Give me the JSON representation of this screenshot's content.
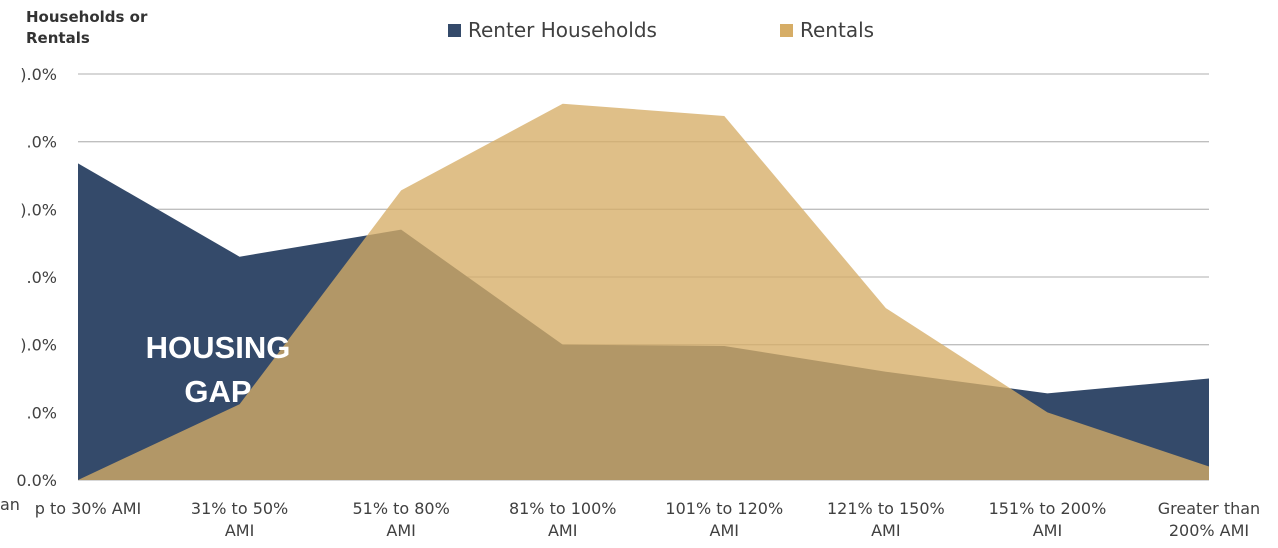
{
  "chart_data": {
    "type": "area",
    "y_axis_title": "Households or\nRentals",
    "annotation": "HOUSING\nGAP",
    "stray_label": "an",
    "categories": [
      "p to 30% AMI",
      "31% to 50%\nAMI",
      "51% to 80%\nAMI",
      "81% to 100%\nAMI",
      "101% to 120%\nAMI",
      "121% to 150%\nAMI",
      "151% to 200%\nAMI",
      "Greater than\n200% AMI"
    ],
    "series": [
      {
        "name": "Renter Households",
        "color": "#344a6a",
        "values": [
          23.4,
          16.5,
          18.5,
          10.0,
          9.9,
          8.0,
          6.4,
          7.5
        ]
      },
      {
        "name": "Rentals",
        "color": "#d6ad66",
        "values": [
          0,
          5.6,
          21.4,
          27.8,
          26.9,
          12.7,
          5.0,
          1.0
        ]
      }
    ],
    "ylim": [
      0,
      30
    ],
    "yticks": [
      {
        "value": 0,
        "label": "0.0%"
      },
      {
        "value": 5,
        "label": ".0%"
      },
      {
        "value": 10,
        "label": ").0%"
      },
      {
        "value": 15,
        "label": ".0%"
      },
      {
        "value": 20,
        "label": ").0%"
      },
      {
        "value": 25,
        "label": ".0%"
      },
      {
        "value": 30,
        "label": ").0%"
      }
    ],
    "grid": true,
    "legend": "top"
  }
}
